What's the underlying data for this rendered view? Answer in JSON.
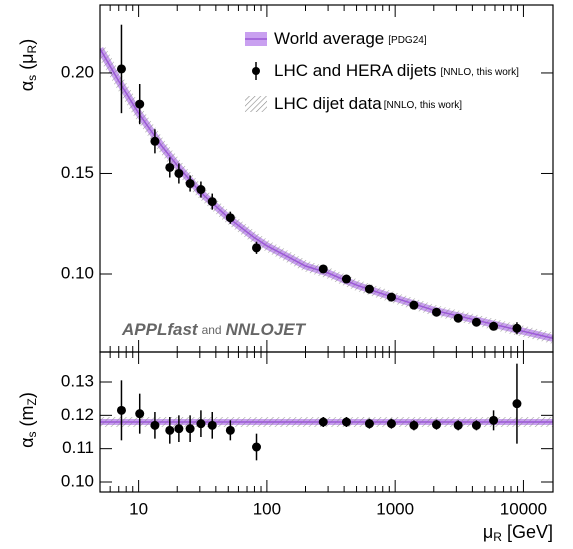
{
  "chart_data": [
    {
      "type": "errorbar",
      "ylabel": [
        "α",
        "s",
        " (μ",
        "R",
        ")"
      ],
      "xscale": "log",
      "xlim": [
        5,
        17000
      ],
      "ylim": [
        0.0612,
        0.2338
      ],
      "yticks": [
        {
          "value": 0.1,
          "label": "0.10"
        },
        {
          "value": 0.15,
          "label": "0.15"
        },
        {
          "value": 0.2,
          "label": "0.20"
        }
      ],
      "series": [
        {
          "name": "LHC and HERA dijets",
          "note": "[NNLO, this work]",
          "color": "#000000",
          "x": [
            7.35,
            10.2,
            13.4,
            17.5,
            20.6,
            25.2,
            30.6,
            37.5,
            51.9,
            83,
            275,
            417,
            630,
            935,
            1400,
            2100,
            3100,
            4300,
            5850,
            8900
          ],
          "values": [
            0.202,
            0.1845,
            0.166,
            0.153,
            0.15,
            0.145,
            0.142,
            0.136,
            0.128,
            0.113,
            0.1025,
            0.0975,
            0.0925,
            0.0885,
            0.0845,
            0.081,
            0.078,
            0.076,
            0.074,
            0.073
          ],
          "errors": [
            0.022,
            0.01,
            0.006,
            0.005,
            0.005,
            0.004,
            0.004,
            0.004,
            0.003,
            0.003,
            0.001,
            0.001,
            0.001,
            0.001,
            0.001,
            0.001,
            0.001,
            0.001,
            0.001,
            0.003
          ]
        }
      ],
      "world_average": {
        "name": "World average",
        "note": "[PDG24]",
        "color": "#9b59d6",
        "band_color": "#c9a0f0",
        "x": [
          5,
          7,
          10,
          15,
          20,
          30,
          50,
          80,
          100,
          200,
          300,
          500,
          1000,
          2000,
          5000,
          10000,
          17000
        ],
        "values": [
          0.212,
          0.196,
          0.18,
          0.164,
          0.154,
          0.141,
          0.128,
          0.118,
          0.114,
          0.104,
          0.1005,
          0.0945,
          0.088,
          0.082,
          0.076,
          0.0715,
          0.068
        ]
      },
      "dijet_band": {
        "name": "LHC dijet data",
        "note": "[NNLO, this work]"
      },
      "annotation": {
        "first": "APPLfast",
        "joiner": "and",
        "second": "NNLOJET"
      }
    },
    {
      "type": "errorbar",
      "ylabel": [
        "α",
        "s",
        " (m",
        "Z",
        ")"
      ],
      "xlabel": [
        "μ",
        "R",
        " [GeV]"
      ],
      "xscale": "log",
      "xlim": [
        5,
        17000
      ],
      "ylim": [
        0.097,
        0.139
      ],
      "xticks": [
        10,
        100,
        1000,
        10000
      ],
      "xminorticks": [
        5,
        6,
        7,
        8,
        9,
        20,
        30,
        40,
        50,
        60,
        70,
        80,
        90,
        200,
        300,
        400,
        500,
        600,
        700,
        800,
        900,
        2000,
        3000,
        4000,
        5000,
        6000,
        7000,
        8000,
        9000
      ],
      "yticks": [
        {
          "value": 0.1,
          "label": "0.10"
        },
        {
          "value": 0.11,
          "label": "0.11"
        },
        {
          "value": 0.12,
          "label": "0.12"
        },
        {
          "value": 0.13,
          "label": "0.13"
        }
      ],
      "series": [
        {
          "name": "LHC and HERA dijets",
          "color": "#000000",
          "x": [
            7.35,
            10.2,
            13.4,
            17.5,
            20.6,
            25.2,
            30.6,
            37.5,
            51.9,
            83,
            275,
            417,
            630,
            935,
            1400,
            2100,
            3100,
            4300,
            5850,
            8900
          ],
          "values": [
            0.1215,
            0.1205,
            0.117,
            0.1155,
            0.116,
            0.116,
            0.1175,
            0.117,
            0.1155,
            0.1105,
            0.118,
            0.118,
            0.1175,
            0.1175,
            0.117,
            0.1172,
            0.117,
            0.117,
            0.1185,
            0.1235
          ],
          "errors": [
            0.009,
            0.006,
            0.004,
            0.004,
            0.004,
            0.004,
            0.004,
            0.004,
            0.003,
            0.004,
            0.0015,
            0.0015,
            0.0015,
            0.0015,
            0.0015,
            0.0015,
            0.0015,
            0.0015,
            0.003,
            0.012
          ]
        }
      ],
      "world_average": {
        "value": 0.118,
        "uncertainty": 0.0009,
        "color": "#9b59d6",
        "band_color": "#c9a0f0"
      }
    }
  ]
}
